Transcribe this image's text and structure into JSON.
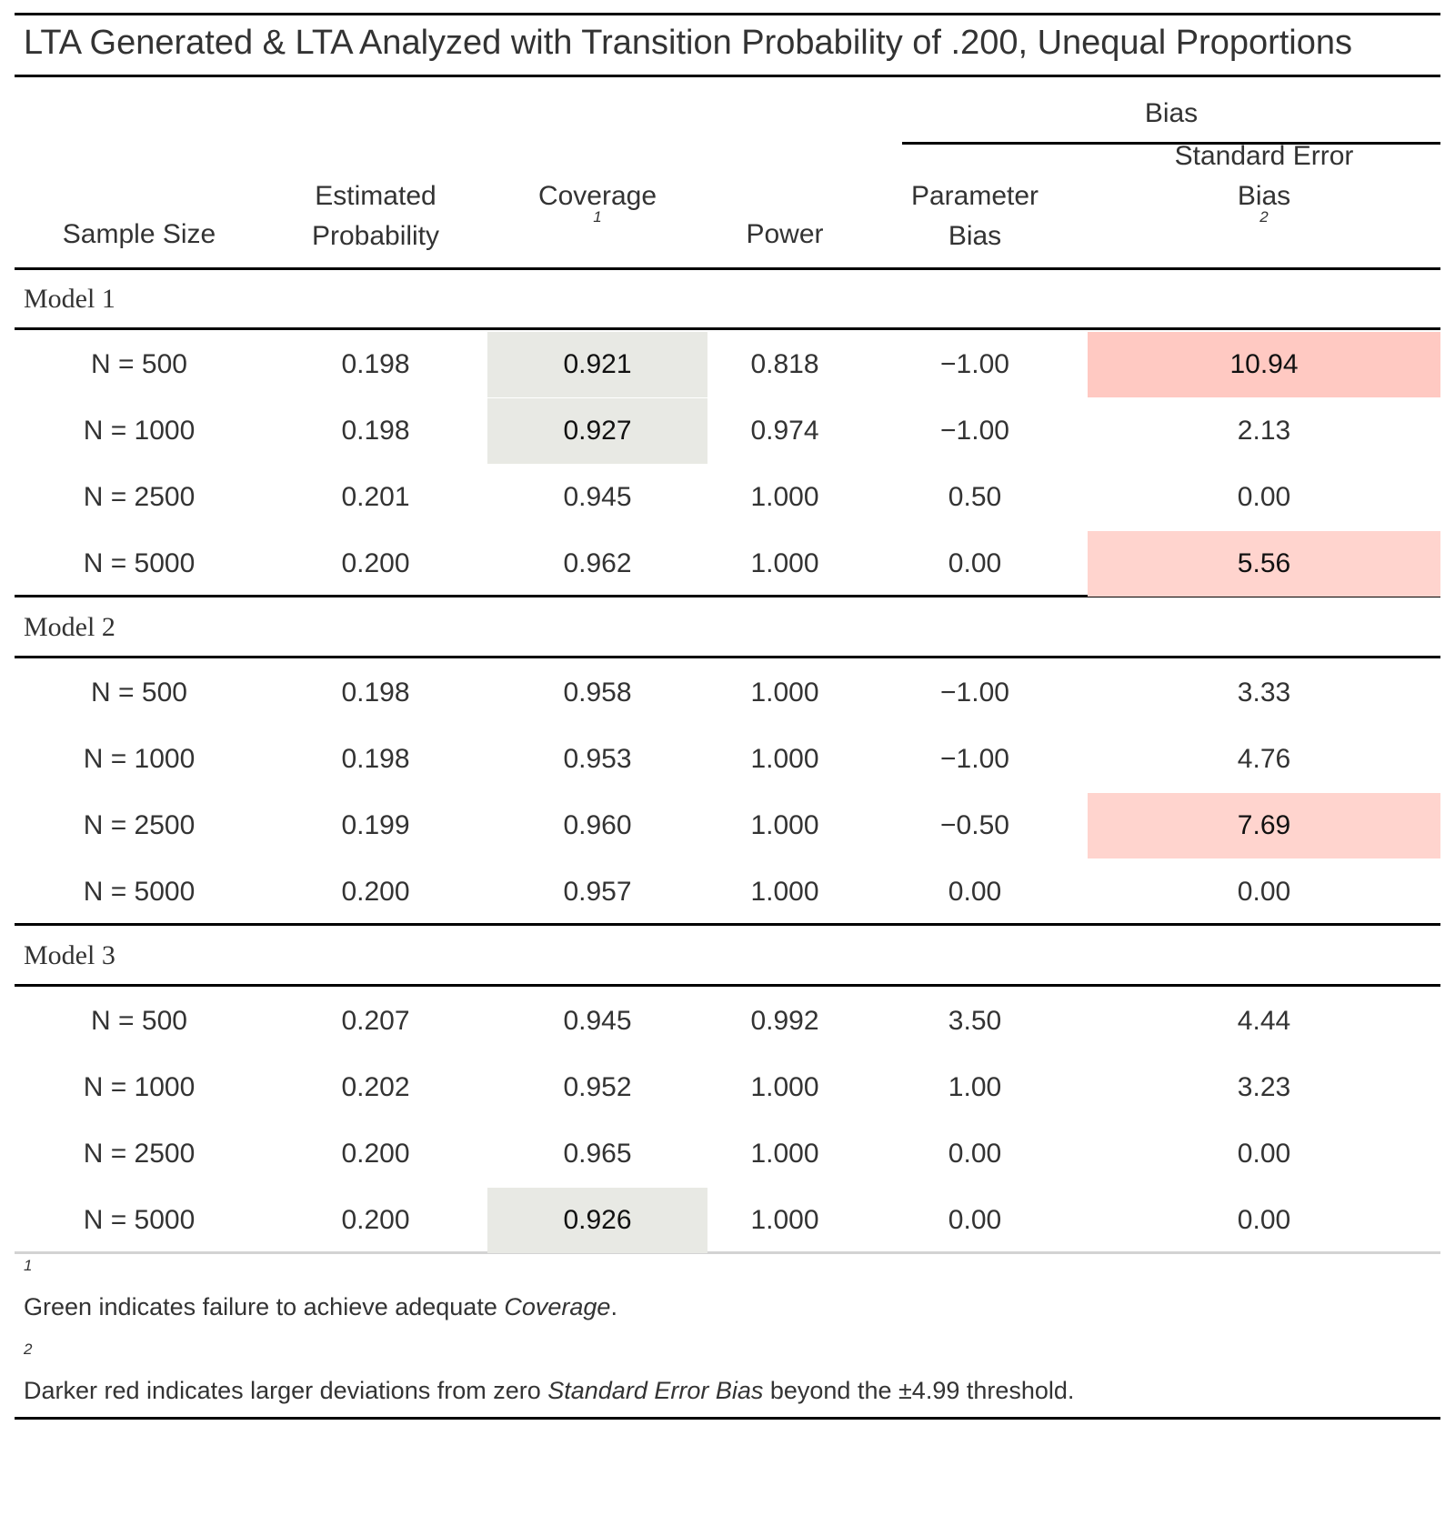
{
  "title": "LTA Generated & LTA Analyzed with Transition Probability of .200, Unequal Proportions",
  "spanner": "Bias",
  "columns": {
    "sample_size": "Sample Size",
    "estimated_line1": "Estimated",
    "estimated_line2": "Probability",
    "coverage": "Coverage",
    "coverage_fn": "1",
    "power": "Power",
    "param_line1": "Parameter",
    "param_line2": "Bias",
    "se_line1": "Standard Error",
    "se_line2": "Bias",
    "se_fn": "2"
  },
  "groups": [
    {
      "label": "Model 1",
      "rows": [
        {
          "n": "N = 500",
          "est": "0.198",
          "cov": "0.921",
          "power": "0.818",
          "pbias": "−1.00",
          "sebias": "10.94",
          "cov_flag": "green",
          "se_flag": "red-dark"
        },
        {
          "n": "N = 1000",
          "est": "0.198",
          "cov": "0.927",
          "power": "0.974",
          "pbias": "−1.00",
          "sebias": "2.13",
          "cov_flag": "green",
          "se_flag": ""
        },
        {
          "n": "N = 2500",
          "est": "0.201",
          "cov": "0.945",
          "power": "1.000",
          "pbias": "0.50",
          "sebias": "0.00",
          "cov_flag": "",
          "se_flag": ""
        },
        {
          "n": "N = 5000",
          "est": "0.200",
          "cov": "0.962",
          "power": "1.000",
          "pbias": "0.00",
          "sebias": "5.56",
          "cov_flag": "",
          "se_flag": "red"
        }
      ]
    },
    {
      "label": "Model 2",
      "rows": [
        {
          "n": "N = 500",
          "est": "0.198",
          "cov": "0.958",
          "power": "1.000",
          "pbias": "−1.00",
          "sebias": "3.33",
          "cov_flag": "",
          "se_flag": ""
        },
        {
          "n": "N = 1000",
          "est": "0.198",
          "cov": "0.953",
          "power": "1.000",
          "pbias": "−1.00",
          "sebias": "4.76",
          "cov_flag": "",
          "se_flag": ""
        },
        {
          "n": "N = 2500",
          "est": "0.199",
          "cov": "0.960",
          "power": "1.000",
          "pbias": "−0.50",
          "sebias": "7.69",
          "cov_flag": "",
          "se_flag": "red"
        },
        {
          "n": "N = 5000",
          "est": "0.200",
          "cov": "0.957",
          "power": "1.000",
          "pbias": "0.00",
          "sebias": "0.00",
          "cov_flag": "",
          "se_flag": ""
        }
      ]
    },
    {
      "label": "Model 3",
      "rows": [
        {
          "n": "N = 500",
          "est": "0.207",
          "cov": "0.945",
          "power": "0.992",
          "pbias": "3.50",
          "sebias": "4.44",
          "cov_flag": "",
          "se_flag": ""
        },
        {
          "n": "N = 1000",
          "est": "0.202",
          "cov": "0.952",
          "power": "1.000",
          "pbias": "1.00",
          "sebias": "3.23",
          "cov_flag": "",
          "se_flag": ""
        },
        {
          "n": "N = 2500",
          "est": "0.200",
          "cov": "0.965",
          "power": "1.000",
          "pbias": "0.00",
          "sebias": "0.00",
          "cov_flag": "",
          "se_flag": ""
        },
        {
          "n": "N = 5000",
          "est": "0.200",
          "cov": "0.926",
          "power": "1.000",
          "pbias": "0.00",
          "sebias": "0.00",
          "cov_flag": "green",
          "se_flag": ""
        }
      ]
    }
  ],
  "footnotes": [
    {
      "mark": "1",
      "pre": "Green indicates failure to achieve adequate ",
      "em": "Coverage",
      "post": "."
    },
    {
      "mark": "2",
      "pre": "Darker red indicates larger deviations from zero ",
      "em": "Standard Error Bias",
      "post": " beyond the ±4.99 threshold."
    }
  ],
  "colors": {
    "green": "#E8E9E4",
    "red_dark": "#FFC9C2",
    "red": "#FFD4CE"
  }
}
